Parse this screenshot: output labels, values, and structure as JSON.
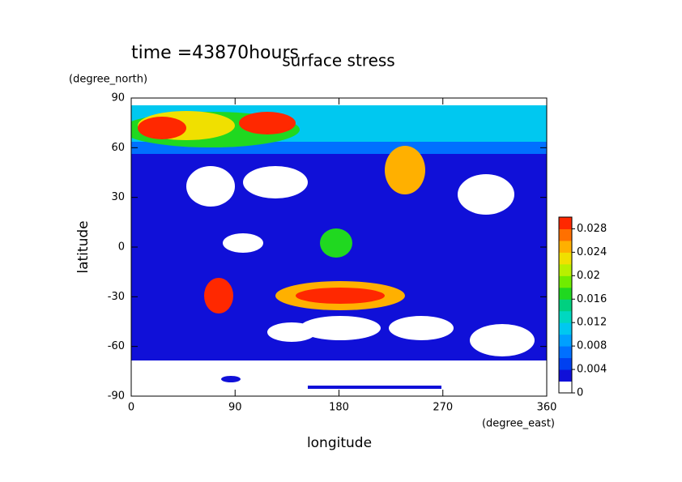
{
  "chart_data": {
    "type": "contour",
    "title": "surface stress",
    "subtitle": "time =43870hours",
    "x_label": "longitude",
    "x_unit": "(degree_east)",
    "y_label": "latitude",
    "y_unit": "(degree_north)",
    "xlim": [
      0,
      360
    ],
    "xticks": [
      0,
      90,
      180,
      270,
      360
    ],
    "ylim": [
      -90,
      90
    ],
    "yticks": [
      -90,
      -60,
      -30,
      0,
      30,
      60,
      90
    ],
    "colorbar": {
      "lim": [
        0,
        0.03
      ],
      "ticks": [
        0,
        0.004,
        0.008,
        0.012,
        0.016,
        0.02,
        0.024,
        0.028
      ],
      "colors": [
        "#ffffff",
        "#1010d8",
        "#0040f0",
        "#0070ff",
        "#00a0ff",
        "#00c8f0",
        "#00d8c0",
        "#00d080",
        "#20d820",
        "#70ec00",
        "#b8f000",
        "#f0e000",
        "#ffb000",
        "#ff7000",
        "#ff2800"
      ]
    }
  }
}
